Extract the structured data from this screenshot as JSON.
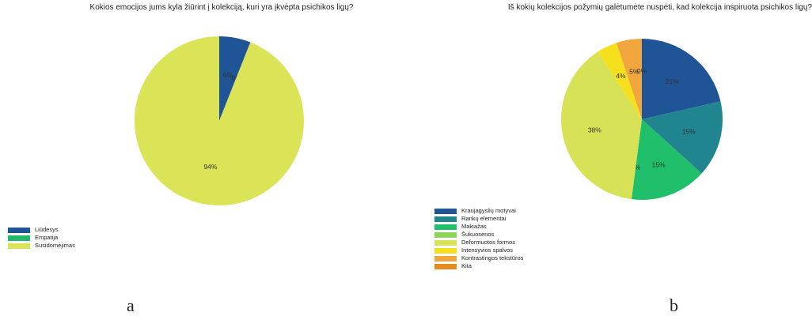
{
  "chart_data": [
    {
      "type": "pie",
      "title": "Kokios emocijos jums kyla žiūrint į kolekciją, kuri yra įkvėpta psichikos ligų?",
      "categories": [
        "Liūdesys",
        "Empatija",
        "Susidomėjimas"
      ],
      "values": [
        6,
        0,
        94
      ],
      "slice_labels": [
        "6%",
        "0%",
        "94%"
      ],
      "colors": [
        "#1f5596",
        "#23b96b",
        "#dbe457"
      ],
      "legend_position": "bottom-left",
      "start_angle": "12 o'clock, clockwise",
      "panel_label": "a"
    },
    {
      "type": "pie",
      "title": "Iš kokių kolekcijos požymių galėtumėte nuspėti, kad kolekcija inspiruota psichikos ligų?",
      "categories": [
        "Kraujagyslių motyvai",
        "Rankų elementai",
        "Makiažas",
        "Šukuosenos",
        "Deformuotos formos",
        "Intensyvios spalvos",
        "Kontrastingos tekstūros",
        "Kita"
      ],
      "values": [
        21,
        15,
        15,
        0,
        38,
        4,
        5,
        0
      ],
      "slice_labels": [
        "21%",
        "15%",
        "15%",
        "0%",
        "38%",
        "4%",
        "5%",
        "0%"
      ],
      "colors": [
        "#1f5596",
        "#21858f",
        "#20bf6b",
        "#8fd45a",
        "#d8e257",
        "#f6e01d",
        "#f1a73e",
        "#e58a1d"
      ],
      "legend_position": "bottom-left",
      "start_angle": "12 o'clock, clockwise",
      "panel_label": "b"
    }
  ]
}
